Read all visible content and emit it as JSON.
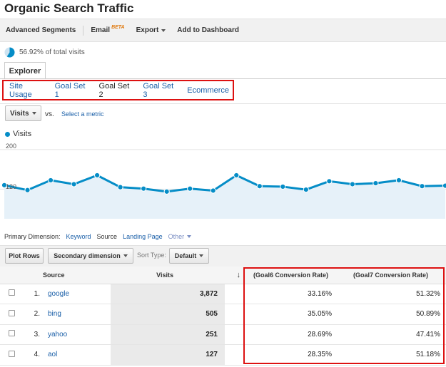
{
  "page_title": "Organic Search Traffic",
  "toolbar": {
    "advanced_segments": "Advanced Segments",
    "email": "Email",
    "email_badge": "BETA",
    "export": "Export",
    "add_to_dashboard": "Add to Dashboard"
  },
  "summary": {
    "percent_text": "56.92% of total visits"
  },
  "tabs": {
    "explorer": "Explorer"
  },
  "subtabs": [
    "Site Usage",
    "Goal Set 1",
    "Goal Set 2",
    "Goal Set 3",
    "Ecommerce"
  ],
  "metric": {
    "selected": "Visits",
    "vs": "vs.",
    "select_metric": "Select a metric"
  },
  "chart_data": {
    "type": "line",
    "series": [
      {
        "name": "Visits",
        "values": [
          128,
          118,
          138,
          130,
          148,
          124,
          121,
          115,
          121,
          117,
          148,
          126,
          125,
          119,
          136,
          130,
          132,
          138,
          126,
          127
        ]
      }
    ],
    "y_ticks": [
      "200",
      "120"
    ],
    "ylim": [
      60,
      210
    ],
    "color": "#058dc7",
    "fill_color": "#e6f1f9"
  },
  "dimension": {
    "label": "Primary Dimension:",
    "keyword": "Keyword",
    "source": "Source",
    "landing_page": "Landing Page",
    "other": "Other"
  },
  "controls": {
    "plot_rows": "Plot Rows",
    "secondary_dimension": "Secondary dimension",
    "sort_type_label": "Sort Type:",
    "sort_default": "Default"
  },
  "table": {
    "headers": {
      "source": "Source",
      "visits": "Visits",
      "sort_arrow": "↓",
      "goal6": "(Goal6 Conversion Rate)",
      "goal7": "(Goal7 Conversion Rate)"
    },
    "rows": [
      {
        "index": "1.",
        "source": "google",
        "visits": "3,872",
        "goal6": "33.16%",
        "goal7": "51.32%"
      },
      {
        "index": "2.",
        "source": "bing",
        "visits": "505",
        "goal6": "35.05%",
        "goal7": "50.89%"
      },
      {
        "index": "3.",
        "source": "yahoo",
        "visits": "251",
        "goal6": "28.69%",
        "goal7": "47.41%"
      },
      {
        "index": "4.",
        "source": "aol",
        "visits": "127",
        "goal6": "28.35%",
        "goal7": "51.18%"
      }
    ]
  }
}
